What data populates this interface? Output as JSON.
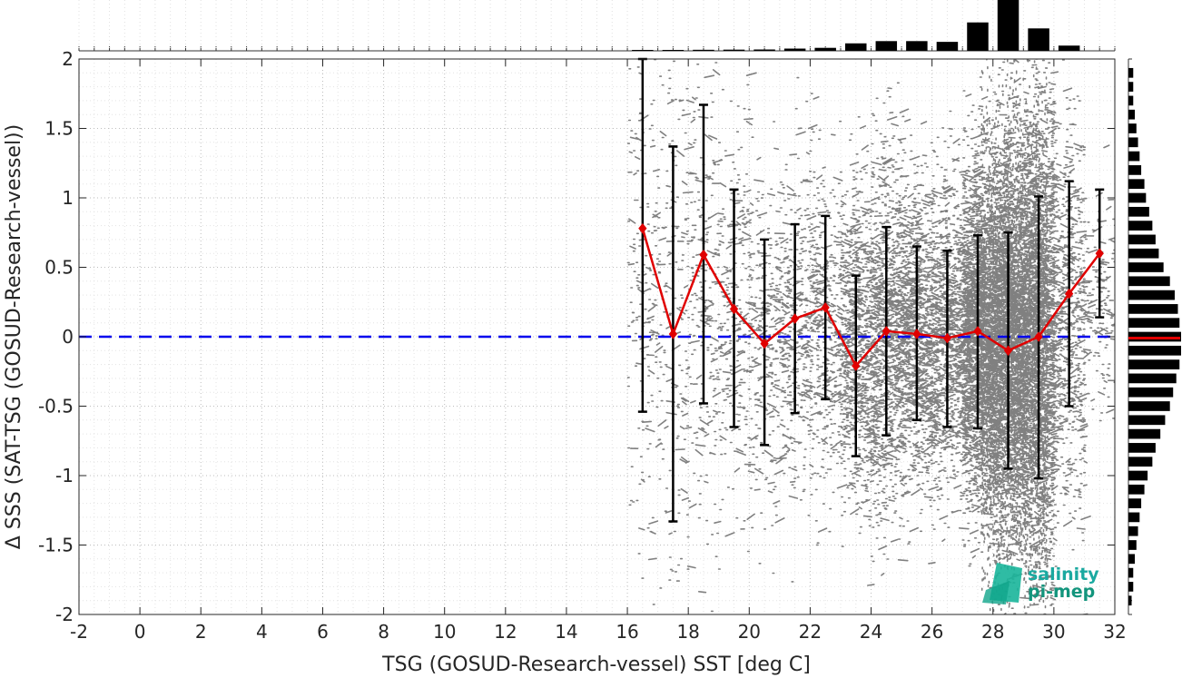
{
  "chart_data": {
    "type": "scatter",
    "xlabel": "TSG (GOSUD-Research-vessel) SST [deg C]",
    "ylabel": "Δ SSS (SAT-TSG (GOSUD-Research-vessel))",
    "xlim": [
      -2,
      32
    ],
    "ylim": [
      -2,
      2
    ],
    "x_ticks": [
      -2,
      0,
      2,
      4,
      6,
      8,
      10,
      12,
      14,
      16,
      18,
      20,
      22,
      24,
      26,
      28,
      30,
      32
    ],
    "y_ticks": [
      -2,
      -1.5,
      -1,
      -0.5,
      0,
      0.5,
      1,
      1.5,
      2
    ],
    "grid": "dotted",
    "zero_line": {
      "y": 0,
      "color": "#0000ee",
      "style": "dashed"
    },
    "scatter_color": "#808080",
    "mean_color": "#e00000",
    "errorbar_color": "#000000",
    "binned_stats": {
      "x": [
        16.5,
        17.5,
        18.5,
        19.5,
        20.5,
        21.5,
        22.5,
        23.5,
        24.5,
        25.5,
        26.5,
        27.5,
        28.5,
        29.5,
        30.5,
        31.5
      ],
      "mean": [
        0.78,
        0.02,
        0.59,
        0.2,
        -0.05,
        0.13,
        0.21,
        -0.21,
        0.04,
        0.02,
        -0.01,
        0.04,
        -0.1,
        0.0,
        0.31,
        0.6
      ],
      "low": [
        -0.54,
        -1.33,
        -0.48,
        -0.65,
        -0.78,
        -0.55,
        -0.45,
        -0.86,
        -0.71,
        -0.6,
        -0.65,
        -0.66,
        -0.95,
        -1.02,
        -0.5,
        0.14
      ],
      "high": [
        2.0,
        1.37,
        1.67,
        1.06,
        0.7,
        0.81,
        0.87,
        0.44,
        0.79,
        0.65,
        0.62,
        0.73,
        0.75,
        1.01,
        1.12,
        1.06
      ]
    },
    "x_histogram": {
      "bins": [
        16.5,
        17.5,
        18.5,
        19.5,
        20.5,
        21.5,
        22.5,
        23.5,
        24.5,
        25.5,
        26.5,
        27.5,
        28.5,
        29.5,
        30.5,
        31.5
      ],
      "counts": [
        0.3,
        0.4,
        0.7,
        0.8,
        0.9,
        1.5,
        2.0,
        5.0,
        6.5,
        6.5,
        6.0,
        19,
        34,
        15,
        3.5,
        0
      ]
    },
    "y_histogram": {
      "bins": [
        1.9,
        1.8,
        1.7,
        1.6,
        1.5,
        1.4,
        1.3,
        1.2,
        1.1,
        1.0,
        0.9,
        0.8,
        0.7,
        0.6,
        0.5,
        0.4,
        0.3,
        0.2,
        0.1,
        0.0,
        -0.1,
        -0.2,
        -0.3,
        -0.4,
        -0.5,
        -0.6,
        -0.7,
        -0.8,
        -0.9,
        -1.0,
        -1.1,
        -1.2,
        -1.3,
        -1.4,
        -1.5,
        -1.6,
        -1.7,
        -1.8,
        -1.9
      ],
      "counts": [
        3,
        3,
        3,
        4,
        5,
        6,
        7,
        8,
        10,
        11,
        13,
        15,
        17,
        19,
        22,
        26,
        29,
        31,
        32,
        33,
        33,
        32,
        30,
        28,
        26,
        23,
        20,
        17,
        15,
        12,
        10,
        8,
        7,
        6,
        5,
        4,
        3,
        3,
        2
      ]
    },
    "y_hist_mean": -0.01
  },
  "logo": {
    "line1": "salinity",
    "line2": "pi-mep"
  }
}
